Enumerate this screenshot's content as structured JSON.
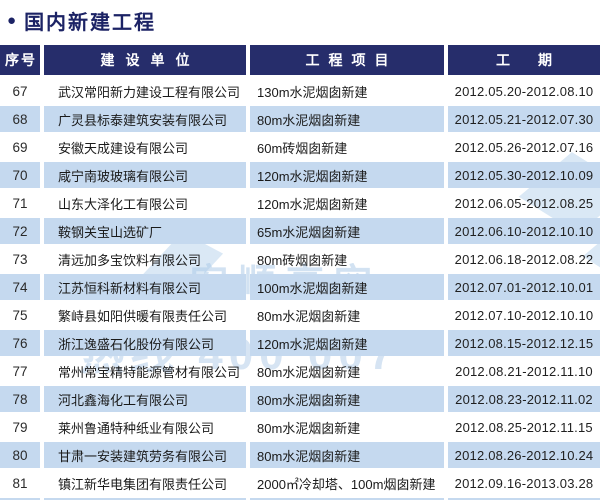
{
  "page": {
    "bullet": "●",
    "title": "国内新建工程"
  },
  "table": {
    "columns": [
      "序号",
      "建设单位",
      "工程项目",
      "工期"
    ],
    "rows": [
      {
        "no": "67",
        "company": "武汉常阳新力建设工程有限公司",
        "project": "130m水泥烟囱新建",
        "period": "2012.05.20-2012.08.10"
      },
      {
        "no": "68",
        "company": "广灵县标泰建筑安装有限公司",
        "project": "80m水泥烟囱新建",
        "period": "2012.05.21-2012.07.30"
      },
      {
        "no": "69",
        "company": "安徽天成建设有限公司",
        "project": "60m砖烟囱新建",
        "period": "2012.05.26-2012.07.16"
      },
      {
        "no": "70",
        "company": "咸宁南玻玻璃有限公司",
        "project": "120m水泥烟囱新建",
        "period": "2012.05.30-2012.10.09"
      },
      {
        "no": "71",
        "company": "山东大泽化工有限公司",
        "project": "120m水泥烟囱新建",
        "period": "2012.06.05-2012.08.25"
      },
      {
        "no": "72",
        "company": "鞍钢关宝山选矿厂",
        "project": "65m水泥烟囱新建",
        "period": "2012.06.10-2012.10.10"
      },
      {
        "no": "73",
        "company": "清远加多宝饮料有限公司",
        "project": "80m砖烟囱新建",
        "period": "2012.06.18-2012.08.22"
      },
      {
        "no": "74",
        "company": "江苏恒科新材料有限公司",
        "project": "100m水泥烟囱新建",
        "period": "2012.07.01-2012.10.01"
      },
      {
        "no": "75",
        "company": "繁峙县如阳供暖有限责任公司",
        "project": "80m水泥烟囱新建",
        "period": "2012.07.10-2012.10.10"
      },
      {
        "no": "76",
        "company": "浙江逸盛石化股份有限公司",
        "project": "120m水泥烟囱新建",
        "period": "2012.08.15-2012.12.15"
      },
      {
        "no": "77",
        "company": "常州常宝精特能源管材有限公司",
        "project": "80m水泥烟囱新建",
        "period": "2012.08.21-2012.11.10"
      },
      {
        "no": "78",
        "company": "河北鑫海化工有限公司",
        "project": "80m水泥烟囱新建",
        "period": "2012.08.23-2012.11.02"
      },
      {
        "no": "79",
        "company": "莱州鲁通特种纸业有限公司",
        "project": "80m水泥烟囱新建",
        "period": "2012.08.25-2012.11.15"
      },
      {
        "no": "80",
        "company": "甘肃一安装建筑劳务有限公司",
        "project": "80m水泥烟囱新建",
        "period": "2012.08.26-2012.10.24"
      },
      {
        "no": "81",
        "company": "镇江新华电集团有限责任公司",
        "project": "2000㎡冷却塔、100m烟囱新建",
        "period": "2012.09.16-2013.03.28"
      }
    ]
  },
  "watermark": {
    "main_text": "宏顺高空",
    "sub_text": "热线 400 007"
  },
  "colors": {
    "header_bg": "#262d6b",
    "title_color": "#1c2365",
    "stripe_bg": "#c5d9ef",
    "watermark_color": "#aecbe8"
  }
}
